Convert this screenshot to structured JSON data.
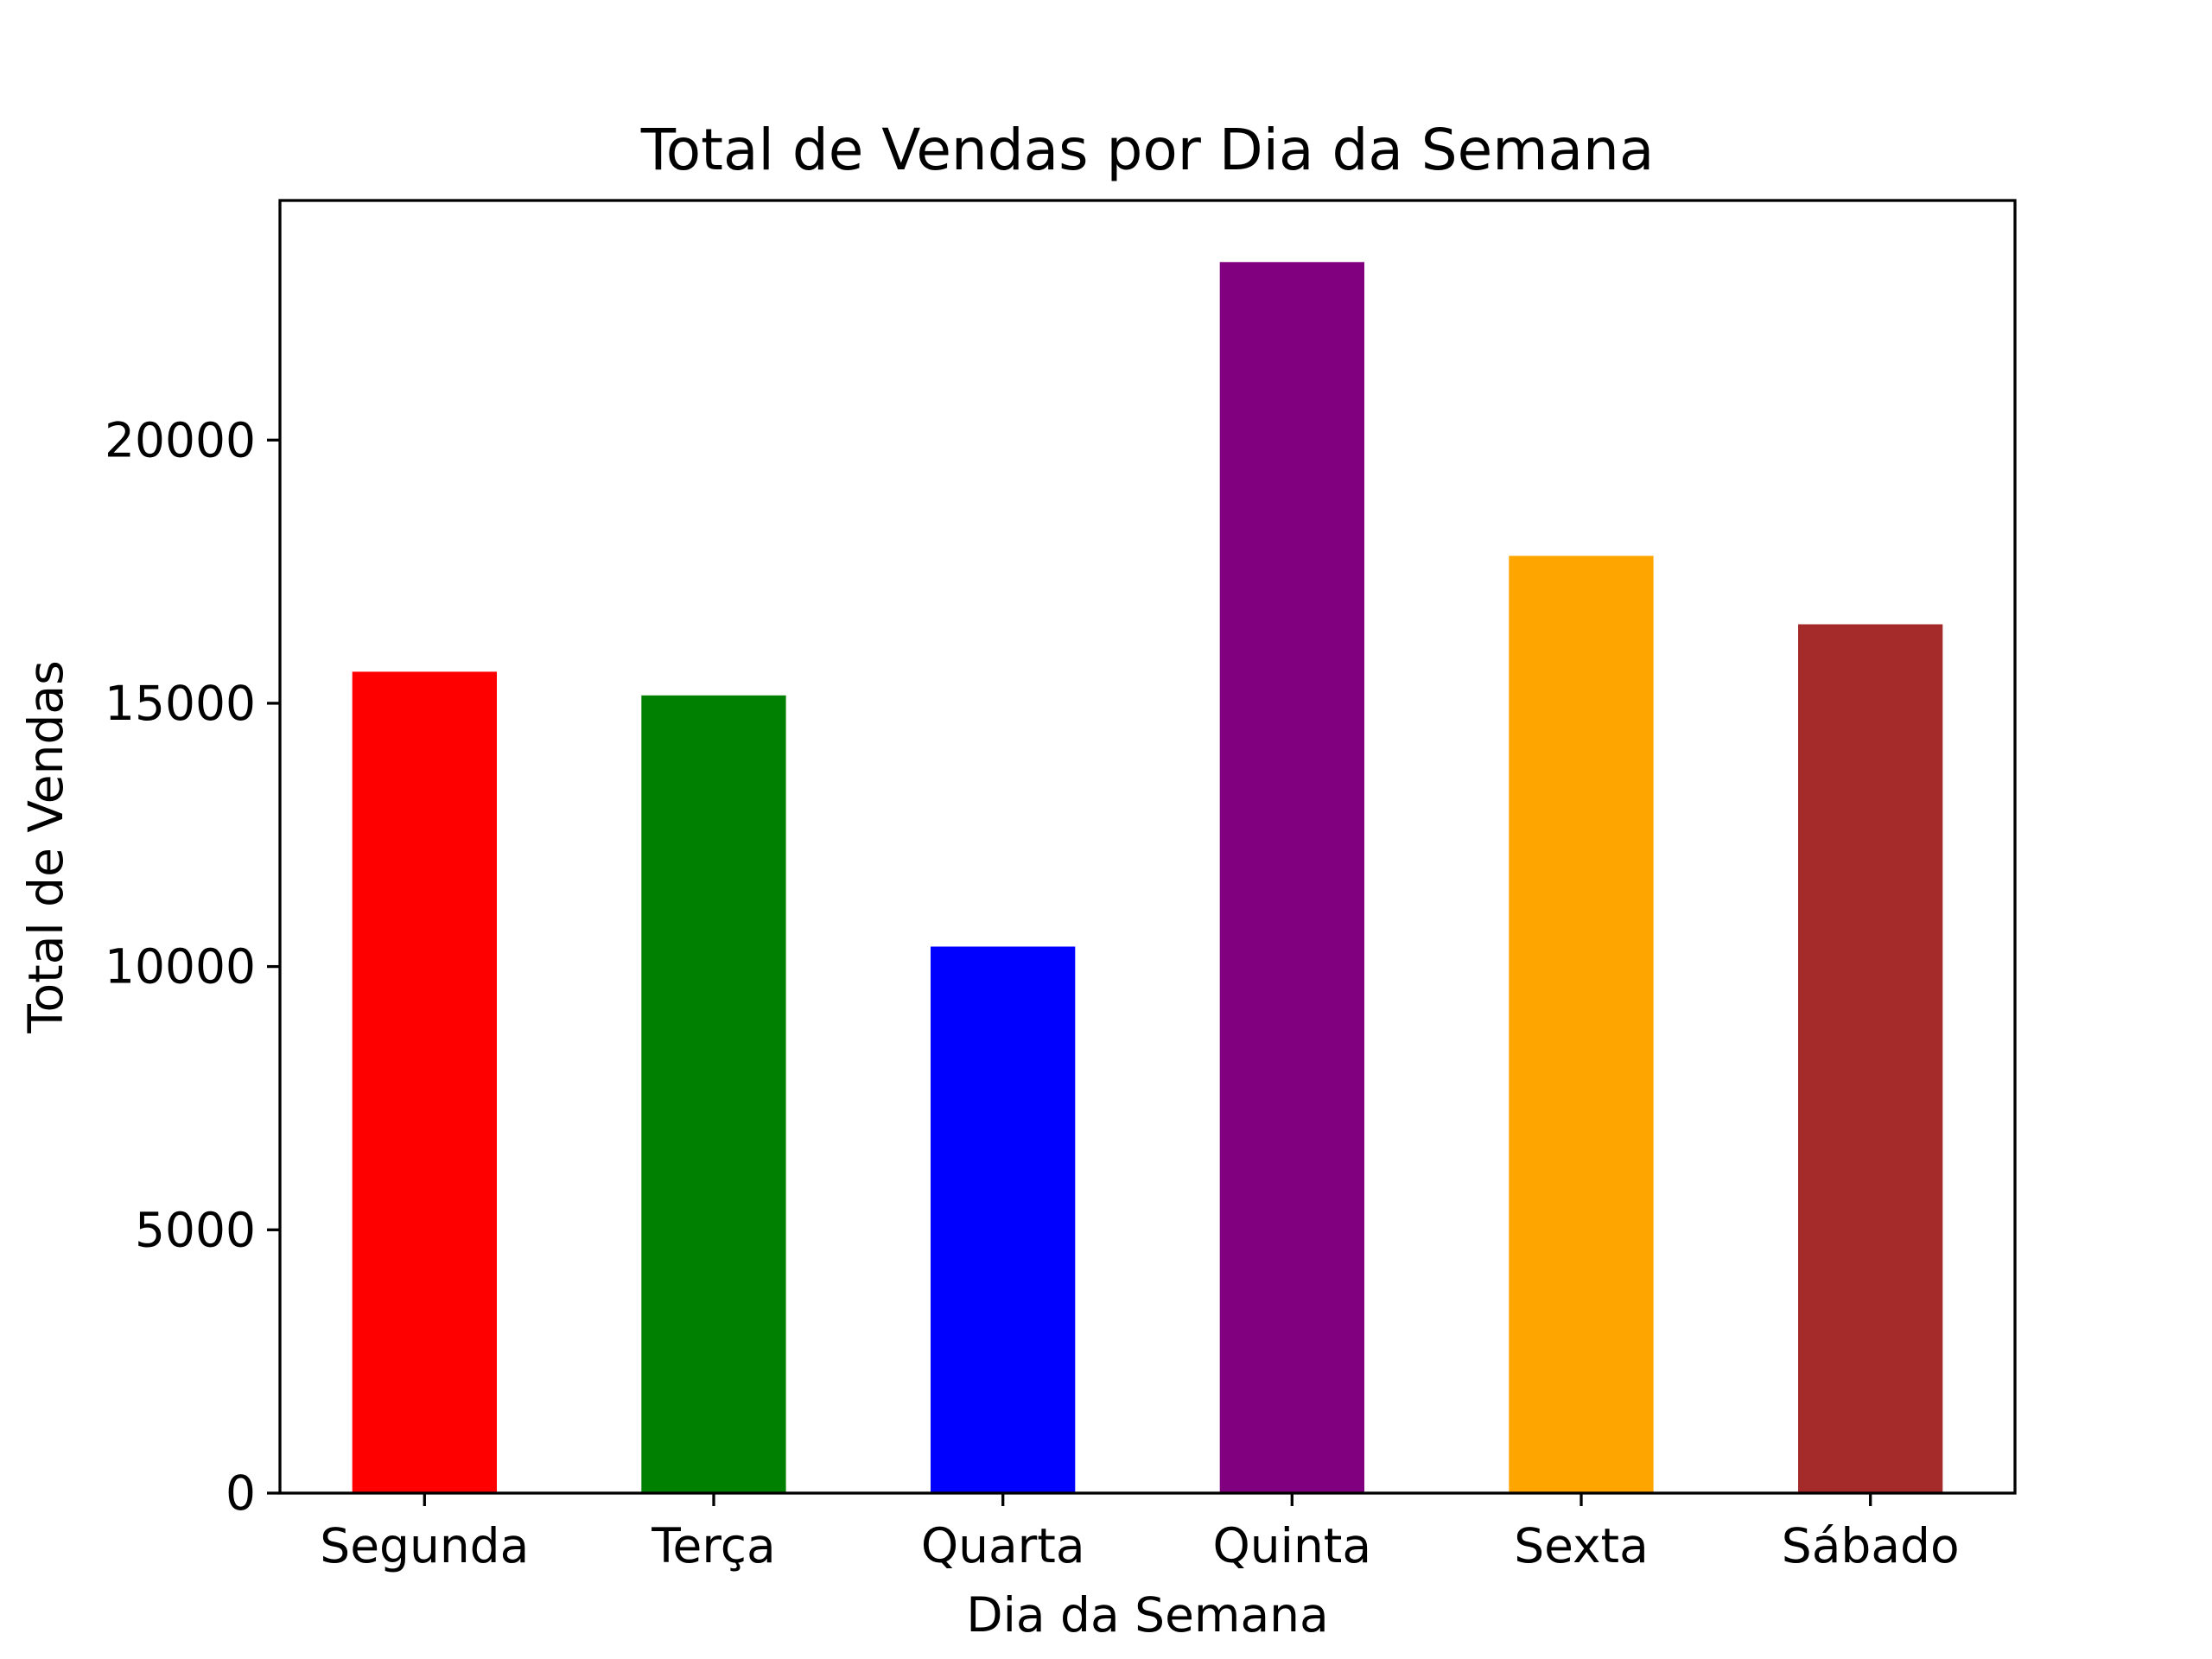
{
  "chart_data": {
    "type": "bar",
    "title": "Total de Vendas por Dia da Semana",
    "xlabel": "Dia da Semana",
    "ylabel": "Total de Vendas",
    "categories": [
      "Segunda",
      "Terça",
      "Quarta",
      "Quinta",
      "Sexta",
      "Sábado"
    ],
    "values": [
      15600,
      15150,
      10380,
      23380,
      17800,
      16500
    ],
    "colors": [
      "#ff0000",
      "#008000",
      "#0000ff",
      "#800080",
      "#ffa500",
      "#a52a2a"
    ],
    "yticks": [
      0,
      5000,
      10000,
      15000,
      20000
    ],
    "ylim": [
      0,
      24550
    ],
    "grid": false
  }
}
